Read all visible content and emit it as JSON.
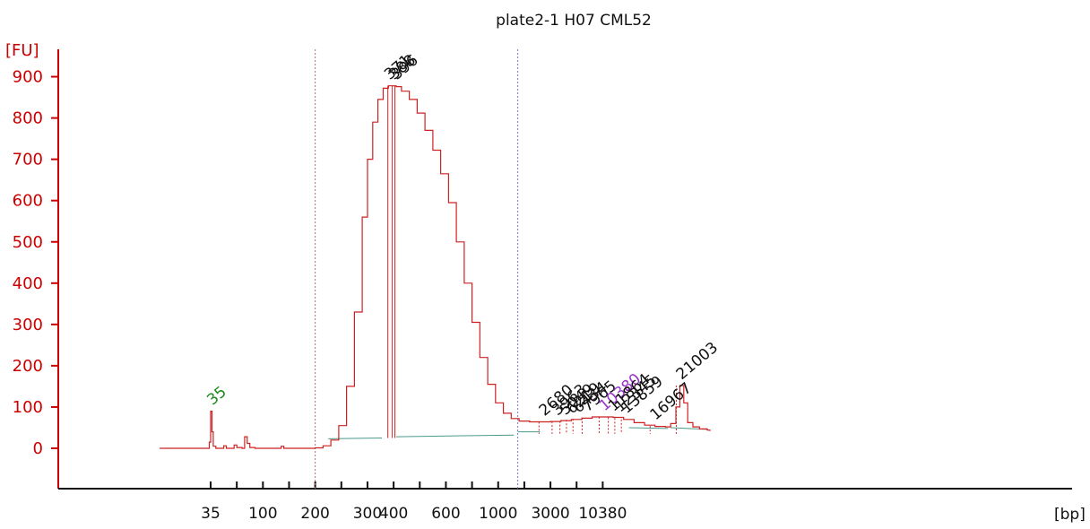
{
  "chart_data": {
    "type": "line",
    "title": "plate2-1 H07 CML52",
    "ylabel": "[FU]",
    "xlabel": "[bp]",
    "ylim": [
      -100,
      950
    ],
    "yticks": [
      0,
      100,
      200,
      300,
      400,
      500,
      600,
      700,
      800,
      900
    ],
    "xticks": [
      {
        "label": "35",
        "pos": 0
      },
      {
        "label": "",
        "pos": 1
      },
      {
        "label": "100",
        "pos": 2
      },
      {
        "label": "",
        "pos": 3
      },
      {
        "label": "200",
        "pos": 4
      },
      {
        "label": "",
        "pos": 5
      },
      {
        "label": "300",
        "pos": 6
      },
      {
        "label": "400",
        "pos": 7
      },
      {
        "label": "",
        "pos": 8
      },
      {
        "label": "600",
        "pos": 9
      },
      {
        "label": "",
        "pos": 10
      },
      {
        "label": "1000",
        "pos": 11
      },
      {
        "label": "",
        "pos": 12
      },
      {
        "label": "3000",
        "pos": 13
      },
      {
        "label": "",
        "pos": 14
      },
      {
        "label": "10380",
        "pos": 15
      }
    ],
    "grid": false,
    "series": [
      {
        "points": [
          [
            -1.95,
            0
          ],
          [
            -0.1,
            0
          ],
          [
            -0.05,
            15
          ],
          [
            0.0,
            90
          ],
          [
            0.05,
            40
          ],
          [
            0.1,
            5
          ],
          [
            0.2,
            0
          ],
          [
            0.4,
            0
          ],
          [
            0.5,
            6
          ],
          [
            0.6,
            0
          ],
          [
            0.8,
            0
          ],
          [
            0.9,
            8
          ],
          [
            1.0,
            2
          ],
          [
            1.2,
            0
          ],
          [
            1.3,
            28
          ],
          [
            1.4,
            12
          ],
          [
            1.5,
            2
          ],
          [
            1.7,
            0
          ],
          [
            2.6,
            0
          ],
          [
            2.7,
            5
          ],
          [
            2.8,
            0
          ],
          [
            3.5,
            0
          ],
          [
            3.8,
            0
          ],
          [
            4.0,
            1
          ],
          [
            4.3,
            6
          ],
          [
            4.6,
            20
          ],
          [
            4.9,
            55
          ],
          [
            5.2,
            150
          ],
          [
            5.5,
            330
          ],
          [
            5.8,
            560
          ],
          [
            6.0,
            700
          ],
          [
            6.2,
            790
          ],
          [
            6.4,
            845
          ],
          [
            6.6,
            872
          ],
          [
            6.8,
            878
          ],
          [
            7.0,
            878
          ],
          [
            7.1,
            876
          ],
          [
            7.3,
            865
          ],
          [
            7.6,
            845
          ],
          [
            7.9,
            812
          ],
          [
            8.2,
            770
          ],
          [
            8.5,
            722
          ],
          [
            8.8,
            665
          ],
          [
            9.1,
            595
          ],
          [
            9.4,
            500
          ],
          [
            9.7,
            400
          ],
          [
            10.0,
            305
          ],
          [
            10.3,
            220
          ],
          [
            10.6,
            155
          ],
          [
            10.9,
            110
          ],
          [
            11.2,
            85
          ],
          [
            11.5,
            72
          ],
          [
            11.8,
            66
          ],
          [
            12.2,
            64
          ],
          [
            12.6,
            64
          ],
          [
            13.0,
            65
          ],
          [
            13.4,
            67
          ],
          [
            13.8,
            70
          ],
          [
            14.2,
            73
          ],
          [
            14.6,
            76
          ],
          [
            15.0,
            76
          ],
          [
            15.4,
            75
          ],
          [
            15.8,
            70
          ],
          [
            16.2,
            62
          ],
          [
            16.6,
            56
          ],
          [
            17.0,
            53
          ],
          [
            17.4,
            52
          ],
          [
            17.6,
            60
          ],
          [
            17.8,
            100
          ],
          [
            17.95,
            152
          ],
          [
            18.1,
            110
          ],
          [
            18.25,
            62
          ],
          [
            18.45,
            52
          ],
          [
            18.7,
            47
          ],
          [
            19.0,
            44
          ],
          [
            19.1,
            42
          ]
        ]
      }
    ],
    "markers": [
      {
        "label": "35",
        "color": "#1a8a1a",
        "x": 0.0,
        "y": 90
      },
      {
        "label": "371",
        "color": "#111111",
        "x": 6.78,
        "y": 878
      },
      {
        "label": "388",
        "color": "#111111",
        "x": 6.95,
        "y": 878
      },
      {
        "label": "396",
        "color": "#111111",
        "x": 7.05,
        "y": 878
      },
      {
        "label": "2680",
        "color": "#111111",
        "x": 12.7,
        "y": 64
      },
      {
        "label": "3963",
        "color": "#111111",
        "x": 13.2,
        "y": 65
      },
      {
        "label": "5049",
        "color": "#111111",
        "x": 13.5,
        "y": 66
      },
      {
        "label": "6219",
        "color": "#111111",
        "x": 13.75,
        "y": 69
      },
      {
        "label": "6434",
        "color": "#111111",
        "x": 14.0,
        "y": 71
      },
      {
        "label": "7965",
        "color": "#111111",
        "x": 14.35,
        "y": 74
      },
      {
        "label": "10380",
        "color": "#9933cc",
        "x": 15.0,
        "y": 76
      },
      {
        "label": "11864",
        "color": "#111111",
        "x": 15.35,
        "y": 75
      },
      {
        "label": "12345",
        "color": "#111111",
        "x": 15.6,
        "y": 73
      },
      {
        "label": "13859",
        "color": "#111111",
        "x": 15.85,
        "y": 70
      },
      {
        "label": "16967",
        "color": "#111111",
        "x": 16.95,
        "y": 54
      },
      {
        "label": "21003",
        "color": "#111111",
        "x": 17.95,
        "y": 152
      }
    ],
    "lower_marker": {
      "label": "35",
      "x": 0.0
    },
    "upper_marker": {
      "label": "10380",
      "x": 15.0
    },
    "boundaries": [
      4.0,
      11.75
    ],
    "baseline_segments": [
      [
        [
          4.5,
          23
        ],
        [
          6.55,
          25
        ]
      ],
      [
        [
          7.1,
          28
        ],
        [
          11.6,
          32
        ]
      ],
      [
        [
          11.75,
          40
        ],
        [
          12.6,
          40
        ]
      ],
      [
        [
          16.0,
          50
        ],
        [
          17.5,
          48
        ]
      ],
      [
        [
          17.6,
          50
        ],
        [
          19.0,
          46
        ]
      ]
    ],
    "colors": {
      "trace": "#cc2222",
      "axis": "#cc0000",
      "boundary": "#bb6666",
      "boundary_right": "#7777cc",
      "baseline": "#4a9a8a"
    }
  }
}
